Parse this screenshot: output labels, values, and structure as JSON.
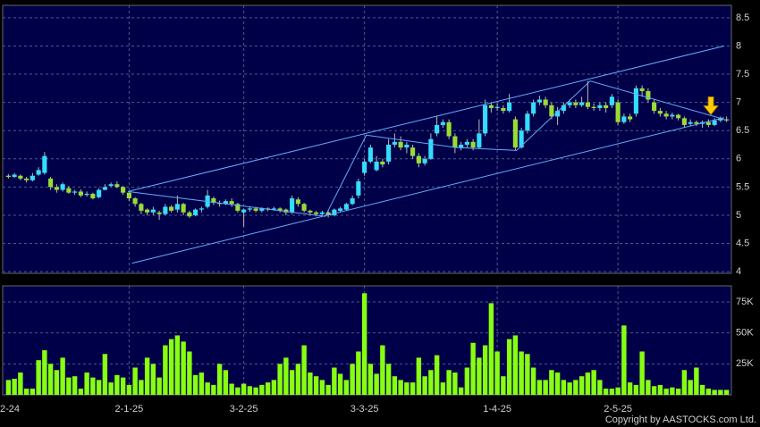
{
  "chart_data": {
    "type": "candlestick",
    "footer": "Copyright by AASTOCKS.com Ltd.",
    "categories": [
      "2-24",
      null,
      null,
      null,
      null,
      null,
      null,
      null,
      null,
      null,
      null,
      null,
      null,
      null,
      null,
      null,
      null,
      null,
      null,
      null,
      "2-1-25",
      null,
      null,
      null,
      null,
      null,
      null,
      null,
      null,
      null,
      null,
      null,
      null,
      null,
      null,
      null,
      null,
      null,
      null,
      "3-2-25",
      null,
      null,
      null,
      null,
      null,
      null,
      null,
      null,
      null,
      null,
      null,
      null,
      null,
      null,
      null,
      null,
      null,
      null,
      null,
      "3-3-25",
      null,
      null,
      null,
      null,
      null,
      null,
      null,
      null,
      null,
      null,
      null,
      null,
      null,
      null,
      null,
      null,
      null,
      null,
      null,
      null,
      null,
      "1-4-25",
      null,
      null,
      null,
      null,
      null,
      null,
      null,
      null,
      null,
      null,
      null,
      null,
      null,
      null,
      null,
      null,
      null,
      null,
      null,
      "2-5-25",
      null,
      null,
      null,
      null,
      null,
      null,
      null,
      null,
      null,
      null,
      null,
      null,
      null,
      null,
      null,
      null,
      null,
      null
    ],
    "open": [
      5.7,
      5.68,
      5.7,
      5.65,
      5.62,
      5.72,
      5.75,
      5.65,
      5.5,
      5.45,
      5.48,
      5.4,
      5.42,
      5.36,
      5.38,
      5.32,
      5.45,
      5.52,
      5.55,
      5.5,
      5.4,
      5.3,
      5.2,
      5.1,
      5.05,
      5.05,
      5.02,
      5.15,
      5.1,
      5.2,
      5.05,
      5.0,
      5.1,
      5.15,
      5.3,
      5.22,
      5.2,
      5.25,
      5.2,
      5.05,
      5.1,
      5.12,
      5.08,
      5.12,
      5.1,
      5.12,
      5.1,
      5.05,
      5.28,
      5.2,
      5.08,
      5.05,
      5.02,
      5.05,
      5.0,
      5.08,
      5.1,
      5.2,
      5.35,
      5.75,
      5.95,
      5.8,
      5.95,
      5.95,
      6.25,
      6.3,
      6.2,
      6.2,
      6.05,
      5.92,
      6.0,
      6.45,
      6.6,
      6.65,
      6.4,
      6.2,
      6.25,
      6.3,
      6.2,
      6.45,
      6.95,
      6.9,
      6.9,
      6.85,
      6.7,
      6.2,
      6.5,
      6.8,
      7.0,
      7.05,
      6.95,
      6.75,
      6.85,
      6.95,
      7.0,
      6.95,
      7.0,
      6.92,
      6.9,
      6.95,
      6.95,
      7.0,
      6.65,
      6.75,
      6.8,
      7.25,
      7.2,
      7.0,
      6.85,
      6.8,
      6.75,
      6.78,
      6.72,
      6.62,
      6.65,
      6.62,
      6.65,
      6.6,
      6.68,
      6.7
    ],
    "high": [
      5.73,
      5.75,
      5.72,
      5.68,
      5.75,
      5.85,
      6.12,
      5.68,
      5.55,
      5.58,
      5.52,
      5.45,
      5.46,
      5.42,
      5.4,
      5.48,
      5.55,
      5.58,
      5.6,
      5.52,
      5.42,
      5.32,
      5.22,
      5.12,
      5.15,
      5.08,
      5.2,
      5.18,
      5.35,
      5.22,
      5.08,
      5.12,
      5.15,
      5.45,
      5.33,
      5.26,
      5.28,
      5.3,
      5.22,
      5.12,
      5.15,
      5.15,
      5.14,
      5.14,
      5.15,
      5.14,
      5.12,
      5.35,
      5.32,
      5.22,
      5.1,
      5.08,
      5.08,
      5.08,
      5.12,
      5.15,
      5.22,
      5.35,
      5.65,
      6.0,
      6.25,
      6.05,
      6.0,
      6.35,
      6.45,
      6.4,
      6.3,
      6.25,
      6.1,
      6.05,
      6.45,
      6.75,
      6.7,
      6.7,
      6.45,
      6.3,
      6.35,
      6.35,
      6.7,
      7.05,
      7.0,
      6.98,
      6.95,
      7.15,
      6.75,
      6.55,
      6.85,
      7.05,
      7.12,
      7.1,
      7.0,
      6.92,
      7.0,
      7.05,
      7.05,
      7.1,
      7.38,
      6.98,
      7.0,
      7.0,
      7.15,
      7.05,
      6.8,
      6.8,
      7.3,
      7.3,
      7.25,
      7.05,
      6.9,
      6.85,
      6.82,
      6.8,
      6.75,
      6.7,
      6.68,
      6.68,
      6.7,
      6.72,
      6.75,
      6.75
    ],
    "low": [
      5.65,
      5.66,
      5.62,
      5.58,
      5.6,
      5.7,
      5.72,
      5.45,
      5.4,
      5.42,
      5.38,
      5.36,
      5.32,
      5.33,
      5.28,
      5.3,
      5.44,
      5.5,
      5.48,
      5.36,
      5.25,
      5.15,
      5.02,
      5.0,
      5.0,
      4.92,
      5.0,
      5.05,
      5.05,
      5.0,
      4.95,
      4.98,
      5.05,
      5.12,
      5.18,
      5.15,
      5.18,
      5.15,
      5.05,
      4.8,
      5.06,
      5.05,
      5.05,
      5.07,
      5.08,
      5.05,
      5.0,
      5.02,
      5.15,
      5.05,
      5.0,
      4.98,
      4.98,
      4.96,
      4.98,
      5.05,
      5.08,
      5.18,
      5.3,
      5.7,
      5.92,
      5.78,
      5.85,
      5.9,
      6.2,
      6.15,
      6.1,
      6.0,
      5.85,
      5.88,
      5.98,
      6.4,
      6.55,
      6.35,
      6.1,
      6.15,
      6.2,
      6.15,
      6.18,
      6.4,
      6.82,
      6.85,
      6.8,
      6.82,
      6.15,
      6.18,
      6.45,
      6.75,
      6.95,
      6.9,
      6.7,
      6.6,
      6.8,
      6.9,
      6.9,
      6.92,
      6.88,
      6.85,
      6.85,
      6.82,
      6.9,
      6.6,
      6.62,
      6.65,
      6.75,
      7.1,
      7.0,
      6.8,
      6.75,
      6.7,
      6.7,
      6.68,
      6.55,
      6.58,
      6.58,
      6.55,
      6.56,
      6.58,
      6.65,
      6.65
    ],
    "close": [
      5.68,
      5.72,
      5.65,
      5.62,
      5.7,
      5.8,
      6.05,
      5.5,
      5.45,
      5.55,
      5.4,
      5.42,
      5.35,
      5.38,
      5.3,
      5.45,
      5.5,
      5.55,
      5.5,
      5.4,
      5.3,
      5.2,
      5.08,
      5.05,
      5.1,
      5.02,
      5.15,
      5.08,
      5.2,
      5.05,
      4.98,
      5.1,
      5.12,
      5.35,
      5.22,
      5.2,
      5.25,
      5.2,
      5.08,
      5.1,
      5.12,
      5.08,
      5.12,
      5.1,
      5.12,
      5.08,
      5.05,
      5.3,
      5.2,
      5.08,
      5.05,
      5.02,
      5.05,
      5.0,
      5.1,
      5.12,
      5.2,
      5.3,
      5.6,
      5.95,
      6.2,
      5.95,
      5.9,
      6.25,
      6.3,
      6.2,
      6.25,
      6.05,
      5.92,
      6.0,
      6.35,
      6.6,
      6.65,
      6.4,
      6.2,
      6.25,
      6.3,
      6.2,
      6.45,
      6.95,
      6.9,
      6.92,
      6.85,
      7.0,
      6.2,
      6.5,
      6.8,
      7.0,
      7.05,
      6.95,
      6.75,
      6.85,
      6.95,
      7.0,
      6.95,
      7.0,
      6.92,
      6.9,
      6.95,
      6.9,
      7.1,
      6.65,
      6.75,
      6.7,
      7.25,
      7.2,
      7.05,
      6.85,
      6.8,
      6.75,
      6.78,
      6.72,
      6.6,
      6.65,
      6.62,
      6.65,
      6.6,
      6.68,
      6.72,
      6.68
    ],
    "up_color": "#33ddff",
    "down_color": "#99dd33",
    "ylim": [
      3.97,
      8.72
    ],
    "yticks": [
      4,
      4.5,
      5,
      5.5,
      6,
      6.5,
      7,
      7.5,
      8,
      8.5
    ],
    "grid": true,
    "volume": {
      "values": [
        12000,
        13000,
        18000,
        5000,
        5000,
        28000,
        36000,
        25000,
        20000,
        30000,
        14000,
        15000,
        5000,
        18000,
        14000,
        12000,
        33000,
        10000,
        16000,
        14000,
        8000,
        22000,
        12000,
        30000,
        25000,
        14000,
        40000,
        45000,
        48000,
        43000,
        35000,
        16000,
        18000,
        10000,
        8000,
        25000,
        20000,
        9000,
        6000,
        9000,
        7000,
        6000,
        8000,
        10000,
        12000,
        25000,
        30000,
        20000,
        25000,
        40000,
        18000,
        15000,
        12000,
        8000,
        22000,
        17000,
        12000,
        25000,
        35000,
        82000,
        25000,
        17000,
        40000,
        25000,
        15000,
        12000,
        10000,
        10000,
        30000,
        15000,
        20000,
        32000,
        10000,
        20000,
        18000,
        6000,
        22000,
        42000,
        30000,
        40000,
        74000,
        35000,
        15000,
        45000,
        48000,
        35000,
        33000,
        22000,
        12000,
        12000,
        20000,
        18000,
        12000,
        10000,
        12000,
        15000,
        18000,
        20000,
        12000,
        5000,
        5000,
        6000,
        56000,
        10000,
        8000,
        35000,
        12000,
        7000,
        8000,
        5000,
        6000,
        5000,
        20000,
        12000,
        22000,
        8000,
        5000,
        4000,
        4000,
        4000
      ],
      "color": "#88ff11",
      "ylim": [
        0,
        88000
      ],
      "yticks": [
        {
          "value": 25000,
          "label": "25K"
        },
        {
          "value": 50000,
          "label": "50K"
        },
        {
          "value": 75000,
          "label": "75K"
        }
      ]
    },
    "trend_lines": [
      {
        "color": "#66aaff",
        "x": [
          19.8,
          118.6
        ],
        "values": [
          5.42,
          8.0
        ]
      },
      {
        "color": "#66aaff",
        "x": [
          20.5,
          118.6
        ],
        "values": [
          4.15,
          6.73
        ]
      },
      {
        "color": "#66aaff",
        "x": [
          19.8,
          52.5,
          59.3,
          74.2,
          84.2,
          96.4,
          118.6
        ],
        "values": [
          5.42,
          4.98,
          6.42,
          6.2,
          6.15,
          7.38,
          6.7
        ]
      }
    ],
    "marker": {
      "color": "#ffcc00",
      "x": 116.4,
      "value": 6.75
    }
  }
}
